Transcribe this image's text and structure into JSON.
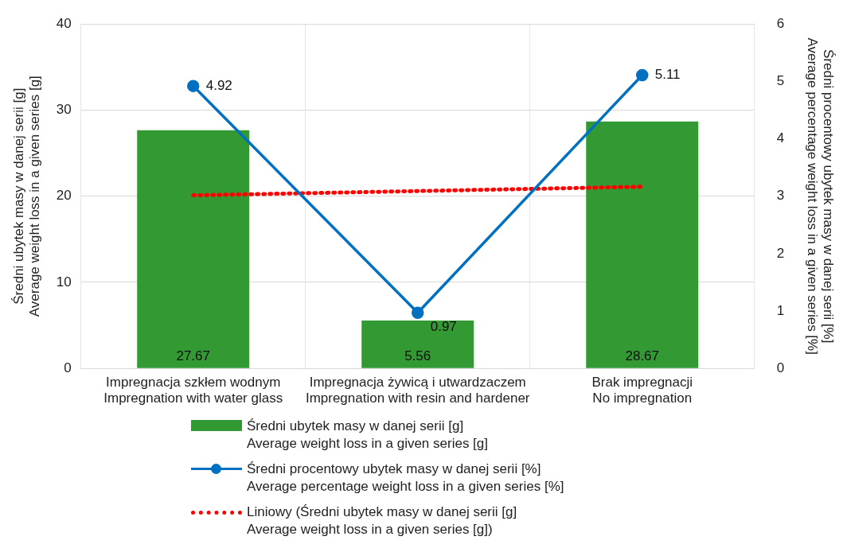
{
  "chart_data": {
    "type": "bar",
    "ylabel": "Średni ubytek masy w danej serii [g]\nAverage weight loss in a given series [g]",
    "y2label": "Średni procentowy ubytek masy w danej serii [%]\nAverage percentage weight loss in a given series [%]",
    "categories": [
      "Impregnacja szkłem wodnym\nImpregnation with water glass",
      "Impregnacja żywicą i utwardzaczem\nImpregnation with resin and hardener",
      "Brak impregnacji\nNo impregnation"
    ],
    "series": [
      {
        "name": "Średni ubytek masy w danej serii [g]\nAverage weight loss in a given series [g]",
        "color": "#339933",
        "values": [
          27.67,
          5.56,
          28.67
        ],
        "value_labels": [
          "27.67",
          "5.56",
          "28.67"
        ]
      },
      {
        "type": "line",
        "axis": "y2",
        "marker": "circle",
        "line_style": "solid",
        "name": "Średni procentowy ubytek masy w danej serii [%]\nAverage percentage weight loss in a given series [%]",
        "color": "#0070c0",
        "values": [
          4.92,
          0.97,
          5.11
        ],
        "value_labels": [
          "4.92",
          "0.97",
          "5.11"
        ]
      },
      {
        "type": "line",
        "marker": "none",
        "line_style": "dotted",
        "name": "Liniowy (Średni ubytek masy w danej serii [g]\nAverage weight loss in a given series [g])",
        "color": "#ff0000",
        "values": [
          20.1,
          20.6,
          21.1
        ]
      }
    ],
    "ylim": [
      0,
      40
    ],
    "yticks": [
      0,
      10,
      20,
      30,
      40
    ],
    "y2lim": [
      0,
      6
    ],
    "y2ticks": [
      0,
      1,
      2,
      3,
      4,
      5,
      6
    ],
    "grid": true,
    "legend": "bottom"
  }
}
